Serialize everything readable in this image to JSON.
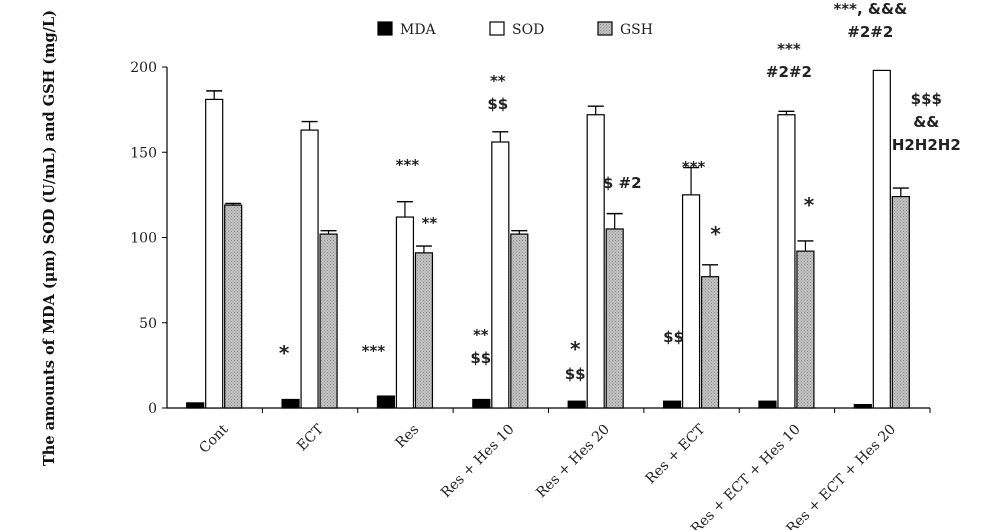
{
  "chart_data": {
    "type": "bar",
    "title": "",
    "xlabel": "",
    "ylabel": "The amounts of MDA (μm) SOD (U/mL) and GSH (mg/L)",
    "ylim": [
      0,
      200
    ],
    "yticks": [
      0,
      50,
      100,
      150,
      200
    ],
    "grid": false,
    "legend_position": "top-center",
    "categories": [
      "Cont",
      "ECT",
      "Res",
      "Res + Hes 10",
      "Res + Hes 20",
      "Res + ECT",
      "Res + ECT + Hes 10",
      "Res + ECT + Hes 20"
    ],
    "series": [
      {
        "name": "MDA",
        "color": "#000000",
        "pattern": "solid",
        "values": [
          3,
          5,
          7,
          5,
          4,
          4,
          4,
          2
        ],
        "errors": [
          0,
          0,
          0,
          0,
          0,
          0,
          0,
          0
        ]
      },
      {
        "name": "SOD",
        "color": "#ffffff",
        "pattern": "outline",
        "values": [
          181,
          163,
          112,
          156,
          172,
          125,
          172,
          198
        ],
        "errors": [
          5,
          5,
          9,
          6,
          5,
          16,
          2,
          0
        ]
      },
      {
        "name": "GSH",
        "color": "#b4b4b4",
        "pattern": "dotted-gray",
        "values": [
          119,
          102,
          91,
          102,
          105,
          77,
          92,
          124
        ],
        "errors": [
          1,
          2,
          4,
          2,
          9,
          7,
          6,
          5
        ]
      }
    ],
    "annotations": [
      {
        "category": 1,
        "series": "MDA",
        "lines": [
          "*"
        ]
      },
      {
        "category": 2,
        "series": "MDA",
        "lines": [
          "***"
        ]
      },
      {
        "category": 3,
        "series": "MDA",
        "lines": [
          "**",
          "$$"
        ]
      },
      {
        "category": 4,
        "series": "MDA",
        "lines": [
          "*",
          "$$"
        ]
      },
      {
        "category": 5,
        "series": "MDA",
        "lines": [
          "$$"
        ]
      },
      {
        "category": 2,
        "series": "SOD",
        "lines": [
          "***"
        ]
      },
      {
        "category": 3,
        "series": "SOD",
        "lines": [
          "**",
          "$$"
        ]
      },
      {
        "category": 5,
        "series": "SOD",
        "lines": [
          "***"
        ]
      },
      {
        "category": 6,
        "series": "SOD",
        "lines": [
          "***",
          "#2#2"
        ]
      },
      {
        "category": 7,
        "series": "SOD",
        "lines": [
          "***, &&&",
          "#2#2"
        ]
      },
      {
        "category": 2,
        "series": "GSH",
        "lines": [
          "**"
        ]
      },
      {
        "category": 4,
        "series": "GSH",
        "lines": [
          "$ #2"
        ]
      },
      {
        "category": 5,
        "series": "GSH",
        "lines": [
          "*"
        ]
      },
      {
        "category": 6,
        "series": "GSH",
        "lines": [
          "*"
        ]
      },
      {
        "category": 7,
        "series": "GSH",
        "lines": [
          "$$$",
          "&&",
          "H2H2H2"
        ]
      }
    ]
  }
}
